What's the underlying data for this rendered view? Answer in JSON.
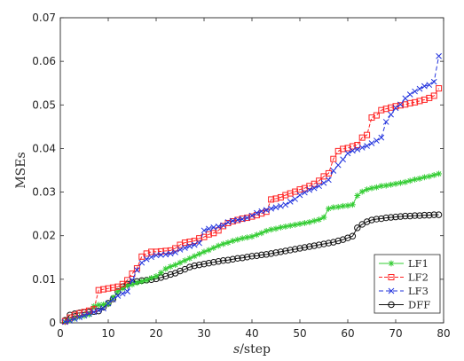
{
  "chart_data": {
    "type": "line",
    "xlabel": "s/step",
    "xlabel_italic_part": "s",
    "xlabel_rest": "/step",
    "ylabel": "MSEs",
    "xlim": [
      0,
      80
    ],
    "ylim": [
      0,
      0.07
    ],
    "xticks": [
      0,
      10,
      20,
      30,
      40,
      50,
      60,
      70,
      80
    ],
    "yticks": [
      0,
      0.01,
      0.02,
      0.03,
      0.04,
      0.05,
      0.06,
      0.07
    ],
    "ytick_labels": [
      "0",
      "0.01",
      "0.02",
      "0.03",
      "0.04",
      "0.05",
      "0.06",
      "0.07"
    ],
    "grid": false,
    "legend_position": "bottom-right",
    "series": [
      {
        "name": "LF1",
        "color": "#33cc33",
        "marker": "asterisk",
        "x": [
          1,
          2,
          3,
          4,
          5,
          6,
          7,
          8,
          9,
          10,
          11,
          12,
          13,
          14,
          15,
          16,
          17,
          18,
          19,
          20,
          21,
          22,
          23,
          24,
          25,
          26,
          27,
          28,
          29,
          30,
          31,
          32,
          33,
          34,
          35,
          36,
          37,
          38,
          39,
          40,
          41,
          42,
          43,
          44,
          45,
          46,
          47,
          48,
          49,
          50,
          51,
          52,
          53,
          54,
          55,
          56,
          57,
          58,
          59,
          60,
          61,
          62,
          63,
          64,
          65,
          66,
          67,
          68,
          69,
          70,
          71,
          72,
          73,
          74,
          75,
          76,
          77,
          78,
          79
        ],
        "values": [
          0.0002,
          0.0006,
          0.001,
          0.0014,
          0.0016,
          0.0019,
          0.0038,
          0.0041,
          0.0042,
          0.0043,
          0.0058,
          0.0072,
          0.0079,
          0.0085,
          0.0088,
          0.0092,
          0.0095,
          0.0098,
          0.0103,
          0.0107,
          0.0115,
          0.0124,
          0.0129,
          0.0133,
          0.0138,
          0.0143,
          0.0148,
          0.0153,
          0.0158,
          0.0163,
          0.0167,
          0.0172,
          0.0177,
          0.0181,
          0.0184,
          0.0188,
          0.0191,
          0.0194,
          0.0196,
          0.0198,
          0.0202,
          0.0206,
          0.0211,
          0.0214,
          0.0216,
          0.0219,
          0.0221,
          0.0223,
          0.0225,
          0.0227,
          0.0229,
          0.0231,
          0.0234,
          0.0237,
          0.0242,
          0.0262,
          0.0265,
          0.0266,
          0.0268,
          0.0269,
          0.0271,
          0.0292,
          0.0301,
          0.0306,
          0.0309,
          0.0311,
          0.0314,
          0.0315,
          0.0317,
          0.0319,
          0.0321,
          0.0323,
          0.0326,
          0.0329,
          0.0331,
          0.0334,
          0.0336,
          0.0339,
          0.0342
        ]
      },
      {
        "name": "LF2",
        "color": "#ff2222",
        "marker": "square",
        "x": [
          1,
          2,
          3,
          4,
          5,
          6,
          7,
          8,
          9,
          10,
          11,
          12,
          13,
          14,
          15,
          16,
          17,
          18,
          19,
          20,
          21,
          22,
          23,
          24,
          25,
          26,
          27,
          28,
          29,
          30,
          31,
          32,
          33,
          34,
          35,
          36,
          37,
          38,
          39,
          40,
          41,
          42,
          43,
          44,
          45,
          46,
          47,
          48,
          49,
          50,
          51,
          52,
          53,
          54,
          55,
          56,
          57,
          58,
          59,
          60,
          61,
          62,
          63,
          64,
          65,
          66,
          67,
          68,
          69,
          70,
          71,
          72,
          73,
          74,
          75,
          76,
          77,
          78,
          79
        ],
        "values": [
          0.0004,
          0.0012,
          0.0018,
          0.0022,
          0.0025,
          0.0028,
          0.0031,
          0.0075,
          0.0077,
          0.0079,
          0.0081,
          0.0083,
          0.0089,
          0.0098,
          0.0113,
          0.0125,
          0.0152,
          0.0159,
          0.0163,
          0.0163,
          0.0164,
          0.0165,
          0.0166,
          0.0171,
          0.0179,
          0.0184,
          0.0186,
          0.0188,
          0.0194,
          0.0197,
          0.0203,
          0.0206,
          0.0212,
          0.0222,
          0.0229,
          0.0233,
          0.0236,
          0.0239,
          0.0241,
          0.0244,
          0.0247,
          0.0251,
          0.0255,
          0.0283,
          0.0285,
          0.0288,
          0.0293,
          0.0297,
          0.0301,
          0.0306,
          0.0309,
          0.0314,
          0.0319,
          0.0326,
          0.0336,
          0.0343,
          0.0376,
          0.0394,
          0.0399,
          0.0401,
          0.0405,
          0.0408,
          0.0425,
          0.0431,
          0.0471,
          0.0476,
          0.0488,
          0.0491,
          0.0494,
          0.0497,
          0.0499,
          0.0501,
          0.0504,
          0.0506,
          0.0509,
          0.0512,
          0.0516,
          0.0521,
          0.0538
        ]
      },
      {
        "name": "LF3",
        "color": "#2233dd",
        "marker": "cross",
        "x": [
          1,
          2,
          3,
          4,
          5,
          6,
          7,
          8,
          9,
          10,
          11,
          12,
          13,
          14,
          15,
          16,
          17,
          18,
          19,
          20,
          21,
          22,
          23,
          24,
          25,
          26,
          27,
          28,
          29,
          30,
          31,
          32,
          33,
          34,
          35,
          36,
          37,
          38,
          39,
          40,
          41,
          42,
          43,
          44,
          45,
          46,
          47,
          48,
          49,
          50,
          51,
          52,
          53,
          54,
          55,
          56,
          57,
          58,
          59,
          60,
          61,
          62,
          63,
          64,
          65,
          66,
          67,
          68,
          69,
          70,
          71,
          72,
          73,
          74,
          75,
          76,
          77,
          78,
          79
        ],
        "values": [
          0.0002,
          0.0005,
          0.0009,
          0.0013,
          0.0017,
          0.0021,
          0.0025,
          0.0029,
          0.0033,
          0.0045,
          0.0054,
          0.0062,
          0.0067,
          0.0072,
          0.0098,
          0.0121,
          0.0138,
          0.0146,
          0.0151,
          0.0155,
          0.0156,
          0.0157,
          0.0159,
          0.0162,
          0.0168,
          0.0172,
          0.0176,
          0.0179,
          0.0183,
          0.0212,
          0.0216,
          0.0219,
          0.0221,
          0.0224,
          0.0231,
          0.0234,
          0.0236,
          0.0238,
          0.0241,
          0.0246,
          0.0252,
          0.0256,
          0.0259,
          0.0262,
          0.0265,
          0.0268,
          0.0271,
          0.0278,
          0.0284,
          0.0293,
          0.0299,
          0.0305,
          0.0309,
          0.0314,
          0.0321,
          0.0328,
          0.0349,
          0.0362,
          0.0375,
          0.0389,
          0.0395,
          0.0398,
          0.0402,
          0.0406,
          0.0412,
          0.0418,
          0.0425,
          0.0461,
          0.0478,
          0.0493,
          0.0501,
          0.0515,
          0.0524,
          0.0531,
          0.0537,
          0.0543,
          0.0546,
          0.0553,
          0.0612
        ]
      },
      {
        "name": "DFF",
        "color": "#111111",
        "marker": "circle",
        "x": [
          1,
          2,
          3,
          4,
          5,
          6,
          7,
          8,
          9,
          10,
          11,
          12,
          13,
          14,
          15,
          16,
          17,
          18,
          19,
          20,
          21,
          22,
          23,
          24,
          25,
          26,
          27,
          28,
          29,
          30,
          31,
          32,
          33,
          34,
          35,
          36,
          37,
          38,
          39,
          40,
          41,
          42,
          43,
          44,
          45,
          46,
          47,
          48,
          49,
          50,
          51,
          52,
          53,
          54,
          55,
          56,
          57,
          58,
          59,
          60,
          61,
          62,
          63,
          64,
          65,
          66,
          67,
          68,
          69,
          70,
          71,
          72,
          73,
          74,
          75,
          76,
          77,
          78,
          79
        ],
        "values": [
          0.0006,
          0.0018,
          0.0021,
          0.0023,
          0.0024,
          0.0025,
          0.0026,
          0.0027,
          0.0036,
          0.0045,
          0.0055,
          0.0072,
          0.0083,
          0.0089,
          0.0093,
          0.0095,
          0.0097,
          0.0098,
          0.0099,
          0.0101,
          0.0104,
          0.0107,
          0.0111,
          0.0114,
          0.0119,
          0.0123,
          0.0128,
          0.0131,
          0.0133,
          0.0135,
          0.0137,
          0.0139,
          0.0141,
          0.0143,
          0.0144,
          0.0146,
          0.0148,
          0.0149,
          0.0151,
          0.0153,
          0.0154,
          0.0156,
          0.0157,
          0.0159,
          0.0161,
          0.0163,
          0.0165,
          0.0167,
          0.0169,
          0.0171,
          0.0173,
          0.0175,
          0.0177,
          0.0179,
          0.0181,
          0.0183,
          0.0185,
          0.0188,
          0.0191,
          0.0195,
          0.0199,
          0.0218,
          0.0226,
          0.0232,
          0.0236,
          0.0238,
          0.0239,
          0.0241,
          0.0242,
          0.0243,
          0.0244,
          0.0245,
          0.0245,
          0.0246,
          0.0246,
          0.0247,
          0.0247,
          0.0248,
          0.0248
        ]
      }
    ]
  }
}
